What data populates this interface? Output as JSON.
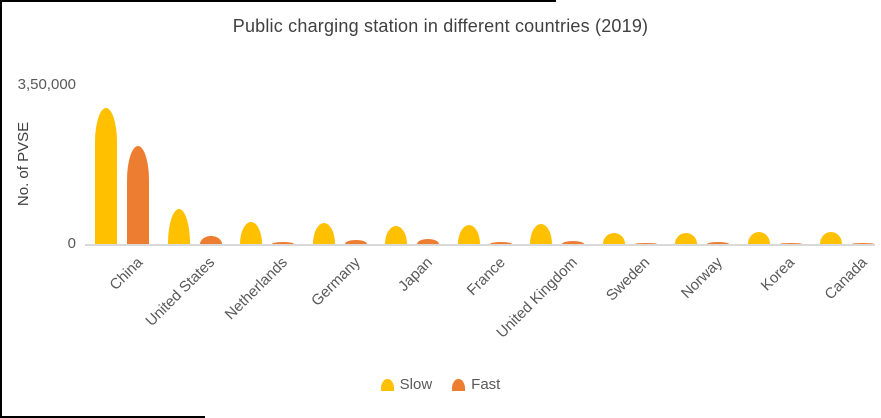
{
  "title": "Public charging station in different countries (2019)",
  "y_axis": {
    "label": "No. of PVSE",
    "tick_max": "3,50,000",
    "tick_zero": "0"
  },
  "legend": [
    {
      "name": "Slow",
      "color": "#FFC000"
    },
    {
      "name": "Fast",
      "color": "#ED7D31"
    }
  ],
  "colors": {
    "slow_bar": "#FFC000",
    "fast_bar": "#ED7D31",
    "axis_line": "#D9D9D9",
    "axis_text": "#595959",
    "title_text": "#404040"
  },
  "chart_data": {
    "type": "bar",
    "title": "Public charging station in different countries (2019)",
    "xlabel": "",
    "ylabel": "No. of PVSE",
    "ylim": [
      0,
      350000
    ],
    "ytick_labels": [
      "0",
      "3,50,000"
    ],
    "grid": false,
    "legend_position": "bottom",
    "bar_style": "rounded-top",
    "categories": [
      "China",
      "United States",
      "Netherlands",
      "Germany",
      "Japan",
      "France",
      "United Kingdom",
      "Sweden",
      "Norway",
      "Korea",
      "Canada"
    ],
    "series": [
      {
        "name": "Slow",
        "color": "#FFC000",
        "values": [
          300000,
          77000,
          48000,
          46000,
          40000,
          42000,
          44000,
          24000,
          24000,
          27000,
          27000
        ]
      },
      {
        "name": "Fast",
        "color": "#ED7D31",
        "values": [
          215000,
          17500,
          4500,
          8000,
          11000,
          4000,
          6500,
          1000,
          4000,
          3000,
          2000
        ]
      }
    ]
  }
}
